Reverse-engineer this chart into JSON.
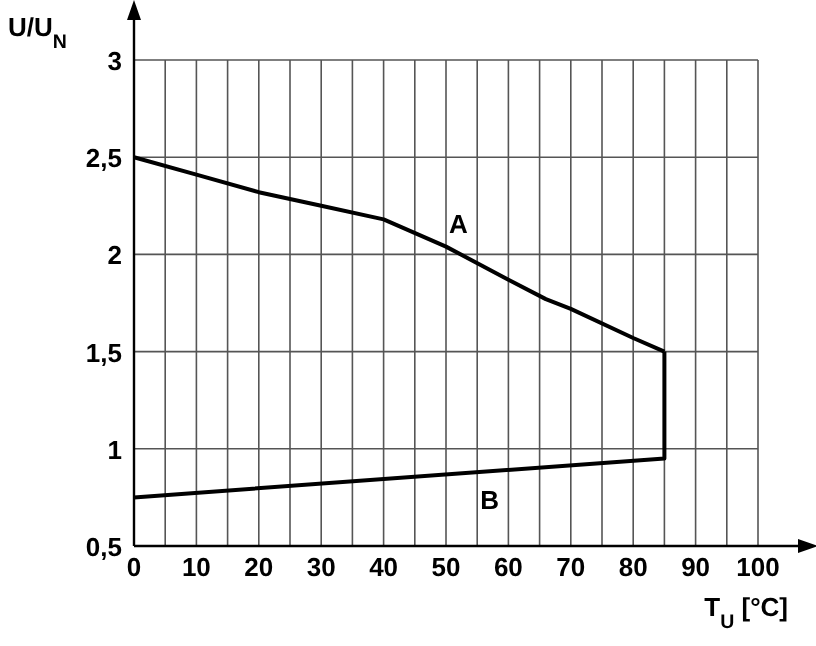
{
  "chart_data": {
    "type": "line",
    "ylabel": "U/U$_{N}$",
    "xlabel": "T$_{U}$ [°C]",
    "xlim": [
      0,
      100
    ],
    "ylim": [
      0.5,
      3
    ],
    "xticks": [
      0,
      {
        "value": 5,
        "label": null
      },
      10,
      {
        "value": 15,
        "label": null
      },
      20,
      {
        "value": 25,
        "label": null
      },
      30,
      {
        "value": 35,
        "label": null
      },
      40,
      {
        "value": 45,
        "label": null
      },
      50,
      {
        "value": 55,
        "label": null
      },
      60,
      {
        "value": 65,
        "label": null
      },
      70,
      {
        "value": 75,
        "label": null
      },
      80,
      {
        "value": 85,
        "label": null
      },
      90,
      {
        "value": 95,
        "label": null
      },
      100
    ],
    "yticks": [
      {
        "value": 0.5,
        "label": "0,5"
      },
      1,
      {
        "value": 1.5,
        "label": "1,5"
      },
      2,
      {
        "value": 2.5,
        "label": "2,5"
      },
      3
    ],
    "grid": true,
    "marker": "none",
    "line_style": "solid",
    "series": [
      {
        "name": "A",
        "color": "#000000",
        "x": [
          0,
          10,
          20,
          30,
          40,
          50,
          60,
          66,
          70,
          80,
          85
        ],
        "values": [
          2.5,
          2.41,
          2.32,
          2.25,
          2.18,
          2.04,
          1.87,
          1.77,
          1.72,
          1.57,
          1.5
        ]
      },
      {
        "name": "B",
        "color": "#000000",
        "x": [
          0,
          85,
          85
        ],
        "values": [
          0.75,
          0.95,
          1.5
        ]
      }
    ]
  }
}
